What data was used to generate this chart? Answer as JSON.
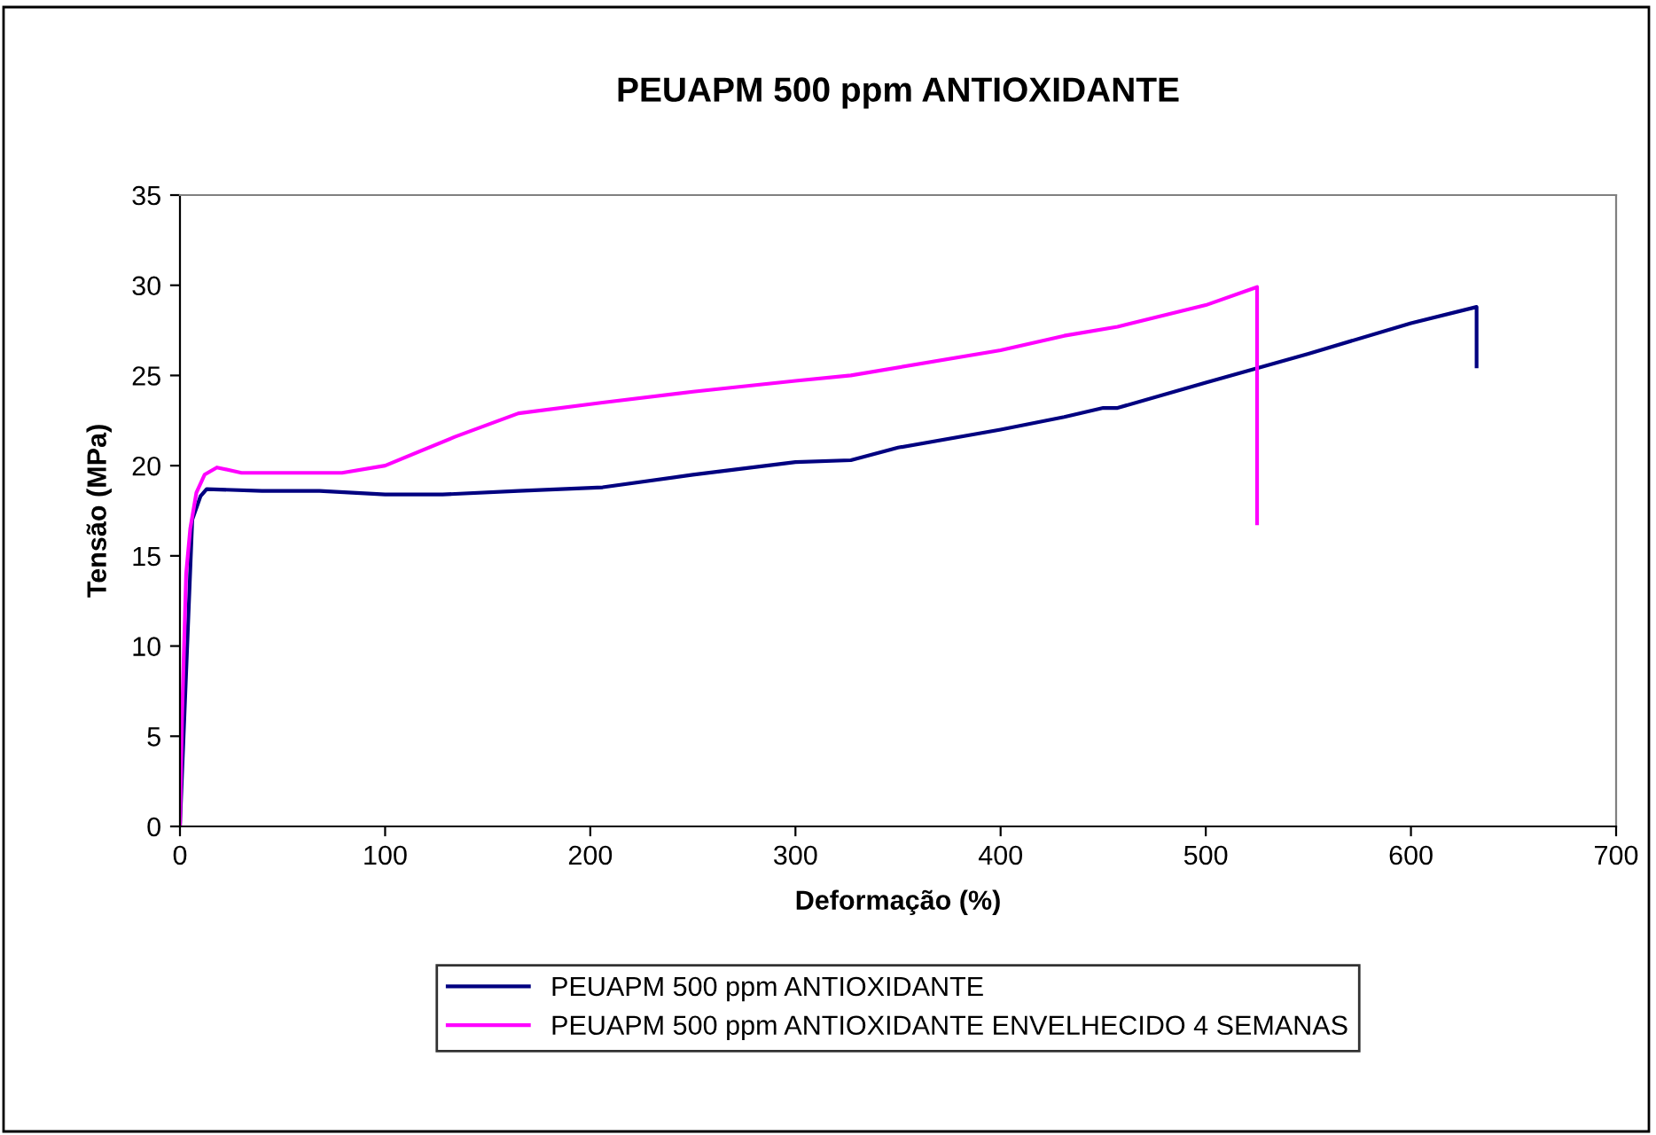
{
  "chart_data": {
    "type": "line",
    "title": "PEUAPM 500 ppm ANTIOXIDANTE",
    "xlabel": "Deformação (%)",
    "ylabel": "Tensão (MPa)",
    "xlim": [
      0,
      700
    ],
    "xticks": [
      0,
      100,
      200,
      300,
      400,
      500,
      600,
      700
    ],
    "ylim": [
      0,
      35
    ],
    "yticks": [
      0,
      5,
      10,
      15,
      20,
      25,
      30,
      35
    ],
    "grid": false,
    "legend": "bottom",
    "marker": "none",
    "line_style": "solid",
    "series": [
      {
        "name": "PEUAPM 500 ppm ANTIOXIDANTE",
        "color": "#000080",
        "x": [
          0,
          6,
          10,
          13,
          40,
          68,
          100,
          128,
          165,
          206,
          250,
          300,
          327,
          350,
          400,
          431,
          450,
          457,
          500,
          550,
          600,
          632,
          632
        ],
        "values": [
          0,
          17,
          18.3,
          18.7,
          18.6,
          18.6,
          18.4,
          18.4,
          18.6,
          18.8,
          19.5,
          20.2,
          20.3,
          21.0,
          22.0,
          22.7,
          23.2,
          23.2,
          24.6,
          26.2,
          27.9,
          28.8,
          25.5
        ]
      },
      {
        "name": "PEUAPM 500 ppm ANTIOXIDANTE ENVELHECIDO 4 SEMANAS",
        "color": "#ff00ff",
        "x": [
          0,
          1,
          2,
          3,
          5,
          8,
          12,
          18,
          30,
          60,
          79,
          100,
          134,
          165,
          206,
          250,
          300,
          327,
          400,
          431,
          457,
          500,
          525,
          525
        ],
        "values": [
          0,
          6,
          10,
          14,
          16.5,
          18.5,
          19.5,
          19.9,
          19.6,
          19.6,
          19.6,
          20.0,
          21.6,
          22.9,
          23.5,
          24.1,
          24.7,
          25.0,
          26.4,
          27.2,
          27.7,
          28.9,
          29.9,
          16.8
        ]
      }
    ]
  }
}
